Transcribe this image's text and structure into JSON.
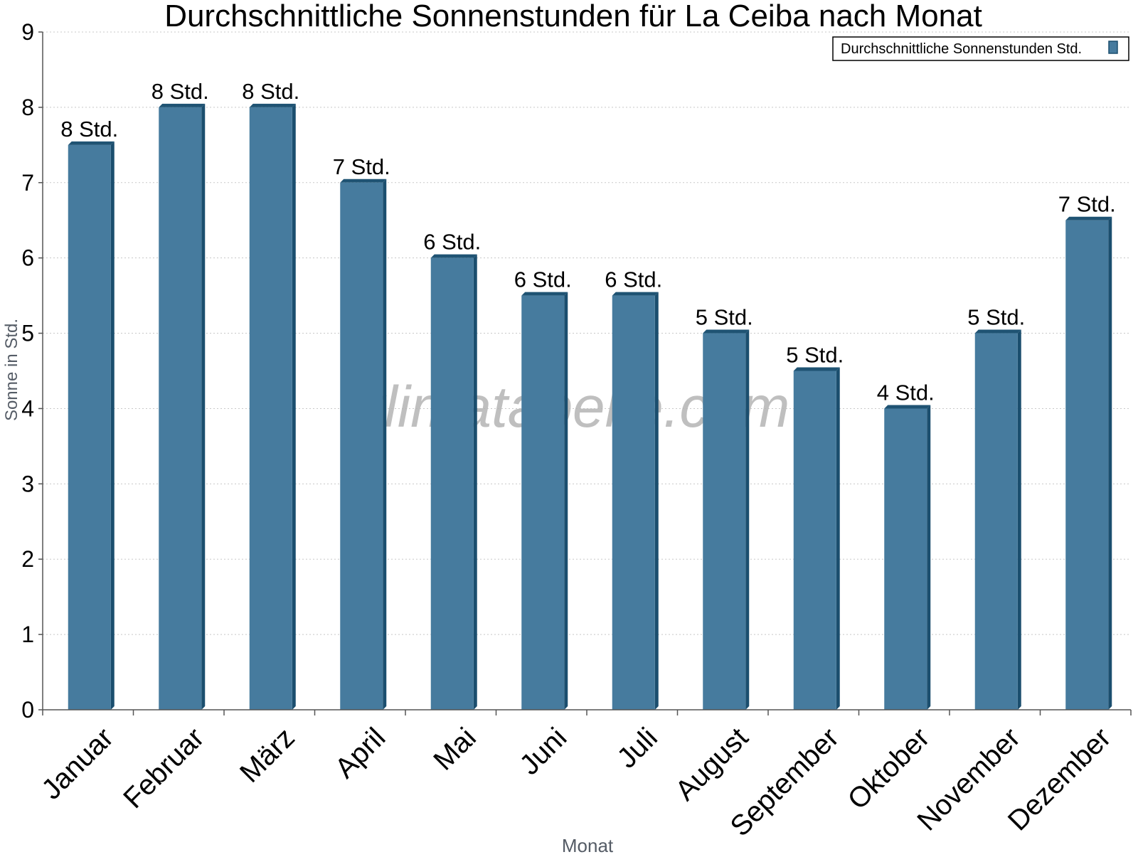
{
  "chart_data": {
    "type": "bar",
    "title": "Durchschnittliche Sonnenstunden für La Ceiba nach Monat",
    "xlabel": "Monat",
    "ylabel": "Sonne in Std.",
    "watermark": "klimatabelle.com",
    "categories": [
      "Januar",
      "Februar",
      "März",
      "April",
      "Mai",
      "Juni",
      "Juli",
      "August",
      "September",
      "Oktober",
      "November",
      "Dezember"
    ],
    "series": [
      {
        "name": "Durchschnittliche Sonnenstunden Std.",
        "values": [
          7.5,
          8,
          8,
          7,
          6,
          5.5,
          5.5,
          5,
          4.5,
          4,
          5,
          6.5
        ],
        "labels": [
          "8 Std.",
          "8 Std.",
          "8 Std.",
          "7 Std.",
          "6 Std.",
          "6 Std.",
          "6 Std.",
          "5 Std.",
          "5 Std.",
          "4 Std.",
          "5 Std.",
          "7 Std."
        ]
      }
    ],
    "ylim": [
      0,
      9
    ],
    "yticks": [
      0,
      1,
      2,
      3,
      4,
      5,
      6,
      7,
      8,
      9
    ],
    "grid": true,
    "legend_position": "top-right",
    "colors": {
      "bar": "#467b9e",
      "bar_side": "#1b4e6e",
      "bar_top": "#1f5373",
      "grid": "#c8c8c8",
      "axis_title": "#555c66"
    }
  }
}
